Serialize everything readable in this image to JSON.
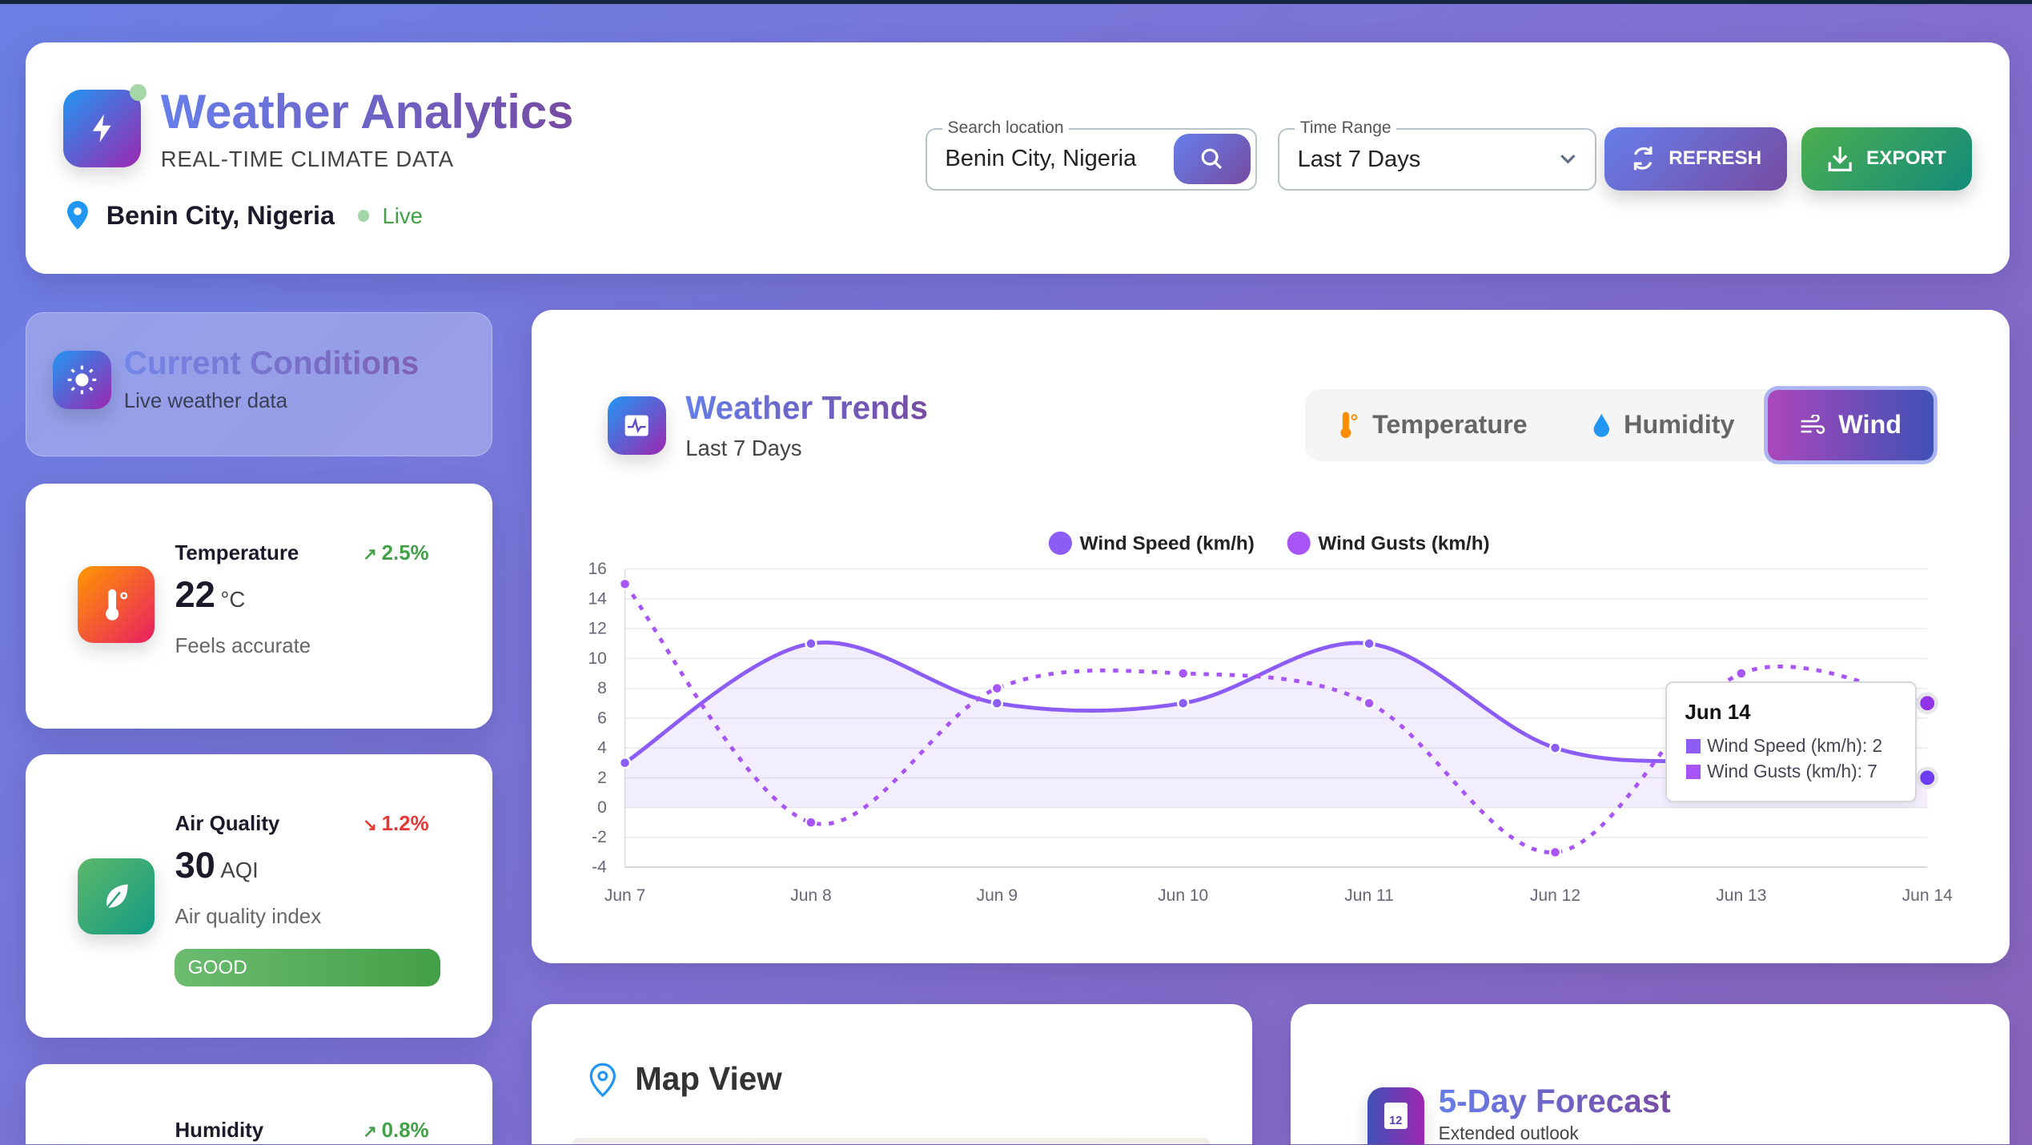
{
  "header": {
    "title": "Weather Analytics",
    "subtitle": "REAL-TIME CLIMATE DATA",
    "location": "Benin City, Nigeria",
    "status": "Live",
    "search": {
      "label": "Search location",
      "value": "Benin City, Nigeria"
    },
    "time_range": {
      "label": "Time Range",
      "value": "Last 7 Days"
    },
    "refresh_label": "REFRESH",
    "export_label": "EXPORT"
  },
  "current": {
    "title": "Current Conditions",
    "subtitle": "Live weather data"
  },
  "stats": [
    {
      "title": "Temperature",
      "change": "2.5%",
      "trend": "up",
      "value": "22",
      "unit": "°C",
      "sub": "Feels accurate"
    },
    {
      "title": "Air Quality",
      "change": "1.2%",
      "trend": "down",
      "value": "30",
      "unit": "AQI",
      "sub": "Air quality index",
      "badge": "GOOD"
    },
    {
      "title": "Humidity",
      "change": "0.8%",
      "trend": "up"
    }
  ],
  "trends": {
    "title": "Weather Trends",
    "subtitle": "Last 7 Days",
    "tabs": [
      {
        "label": "Temperature"
      },
      {
        "label": "Humidity"
      },
      {
        "label": "Wind",
        "active": true
      }
    ]
  },
  "tooltip": {
    "title": "Jun 14",
    "line1": "Wind Speed (km/h): 2",
    "line2": "Wind Gusts (km/h): 7"
  },
  "map": {
    "title": "Map View"
  },
  "forecast": {
    "title": "5-Day Forecast",
    "subtitle": "Extended outlook",
    "icon_text": "12"
  },
  "chart_data": {
    "type": "line",
    "x": [
      "Jun 7",
      "Jun 8",
      "Jun 9",
      "Jun 10",
      "Jun 11",
      "Jun 12",
      "Jun 13",
      "Jun 14"
    ],
    "series": [
      {
        "name": "Wind Speed (km/h)",
        "values": [
          3,
          11,
          7,
          7,
          11,
          4,
          3,
          2
        ],
        "color": "#8b5cf6",
        "style": "solid",
        "fill": true
      },
      {
        "name": "Wind Gusts (km/h)",
        "values": [
          15,
          -1,
          8,
          9,
          7,
          -3,
          9,
          7
        ],
        "color": "#a855f7",
        "style": "dotted"
      }
    ],
    "ylim": [
      -4,
      16
    ],
    "yticks": [
      16,
      14,
      12,
      10,
      8,
      6,
      4,
      2,
      0,
      -2,
      -4
    ],
    "grid": true,
    "legend": "top-center"
  }
}
